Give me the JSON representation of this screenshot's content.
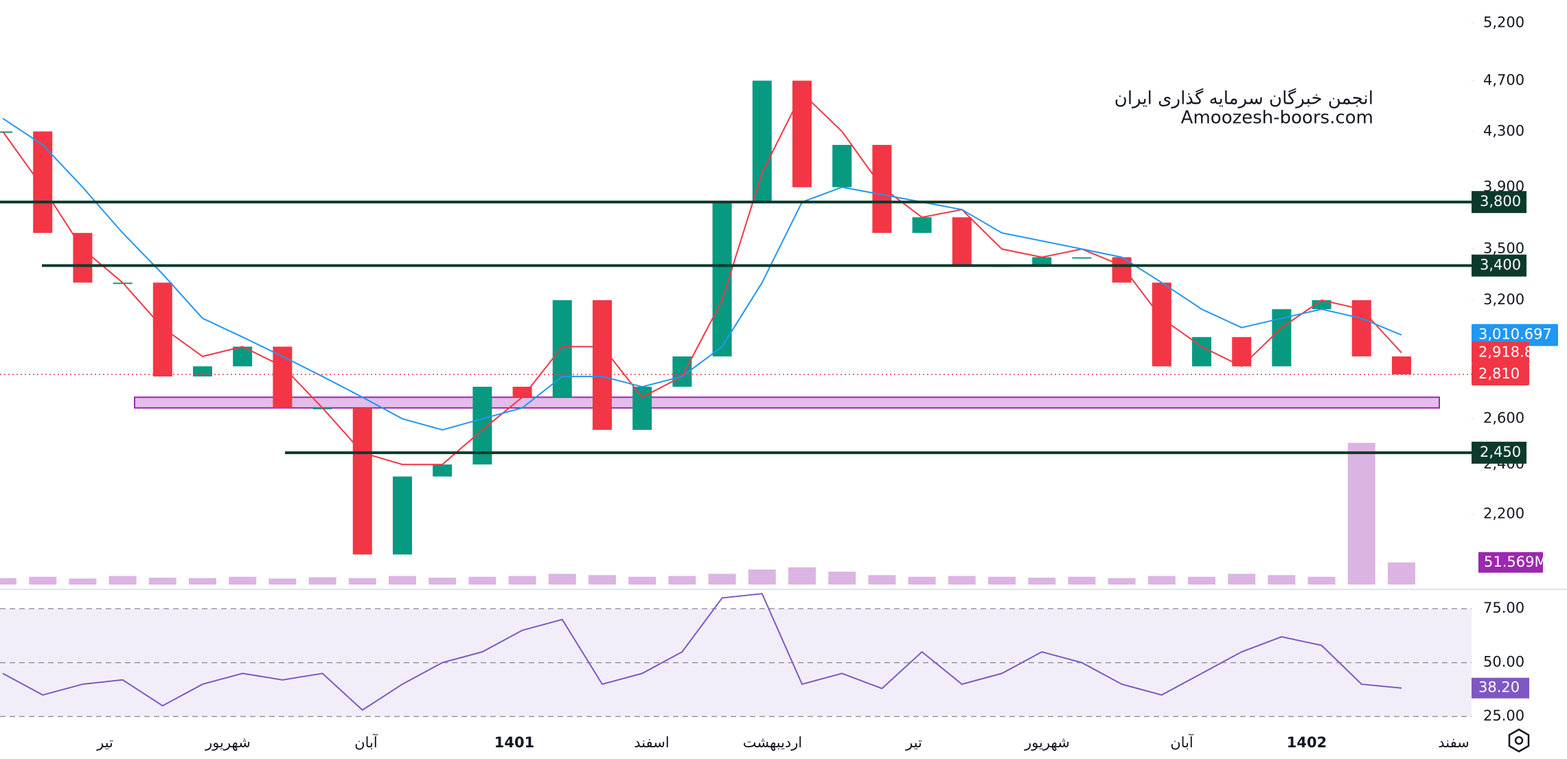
{
  "chart_data": {
    "type": "candlestick",
    "watermark": [
      "انجمن خبرگان سرمایه گذاری ایران",
      "Amoozesh-boors.com"
    ],
    "log_scale": true,
    "ylim": [
      1945,
      5413
    ],
    "yticks": [
      {
        "value": 5200,
        "label": "5,200"
      },
      {
        "value": 4700,
        "label": "4,700"
      },
      {
        "value": 4300,
        "label": "4,300"
      },
      {
        "value": 3900,
        "label": "3,900"
      },
      {
        "value": 3500,
        "label": "3,500"
      },
      {
        "value": 3200,
        "label": "3,200"
      },
      {
        "value": 2600,
        "label": "2,600"
      },
      {
        "value": 2400,
        "label": "2,400"
      },
      {
        "value": 2200,
        "label": "2,200"
      }
    ],
    "up_color": "#089981",
    "down_color": "#f23645",
    "close": [
      4300,
      3600,
      3300,
      3300,
      2800,
      2850,
      2950,
      2650,
      2650,
      2050,
      2350,
      2400,
      2750,
      2700,
      3200,
      2550,
      2750,
      2900,
      3800,
      4700,
      3900,
      4200,
      3600,
      3700,
      3400,
      3400,
      3450,
      3450,
      3300,
      2850,
      3000,
      2850,
      3150,
      3200,
      2900,
      2810
    ],
    "series": [
      {
        "color": "#f23645",
        "values": [
          4300,
          3900,
          3500,
          3300,
          3050,
          2900,
          2950,
          2850,
          2650,
          2450,
          2400,
          2400,
          2550,
          2700,
          2950,
          2950,
          2700,
          2800,
          3200,
          4000,
          4600,
          4300,
          3900,
          3700,
          3750,
          3500,
          3450,
          3500,
          3400,
          3100,
          2950,
          2850,
          3050,
          3200,
          3150,
          2918.8
        ]
      },
      {
        "color": "#2196f3",
        "values": [
          4400,
          4200,
          3900,
          3600,
          3350,
          3100,
          3000,
          2900,
          2800,
          2700,
          2600,
          2550,
          2600,
          2650,
          2800,
          2800,
          2750,
          2800,
          2950,
          3300,
          3800,
          3900,
          3850,
          3800,
          3750,
          3600,
          3550,
          3500,
          3450,
          3300,
          3150,
          3050,
          3100,
          3150,
          3100,
          3010.697
        ]
      }
    ],
    "levels": [
      {
        "value": 3800,
        "label": "3,800"
      },
      {
        "value": 3400,
        "label": "3,400"
      },
      {
        "value": 2450,
        "label": "2,450"
      }
    ],
    "level_color": "#0b3a2c",
    "zone": [
      2650,
      2700
    ],
    "zone_color": "#ce93d8",
    "price_labels": [
      {
        "value": 3010.697,
        "label": "3,010.697",
        "color": "#2196f3"
      },
      {
        "value": 2918.8,
        "label": "2,918.8",
        "color": "#f23645"
      },
      {
        "value": 2810,
        "label": "2,810",
        "color": "#f23645"
      }
    ],
    "volume": {
      "vlim": [
        0,
        400
      ],
      "color": "#9c27b0",
      "values": [
        15,
        18,
        14,
        20,
        16,
        15,
        18,
        14,
        17,
        15,
        20,
        16,
        18,
        20,
        25,
        22,
        18,
        20,
        25,
        35,
        40,
        30,
        22,
        18,
        20,
        18,
        16,
        18,
        15,
        20,
        18,
        25,
        22,
        18,
        330,
        51.569
      ],
      "value_labels": {
        "35": "51.569M"
      }
    },
    "rsi": {
      "ylim": [
        19,
        84
      ],
      "color": "#7e57c2",
      "values": [
        45,
        35,
        40,
        42,
        30,
        40,
        45,
        42,
        45,
        28,
        40,
        50,
        55,
        65,
        70,
        40,
        45,
        55,
        80,
        82,
        40,
        45,
        38,
        55,
        40,
        45,
        55,
        50,
        40,
        35,
        45,
        55,
        62,
        58,
        40,
        38.2
      ],
      "value_labels": {
        "35": "38.20"
      },
      "yticks": [
        {
          "value": 75,
          "label": "75.00"
        },
        {
          "value": 50,
          "label": "50.00"
        },
        {
          "value": 25,
          "label": "25.00"
        }
      ]
    },
    "xlabels": [
      "تیر",
      "شهریور",
      "آبان",
      "1401",
      "اسفند",
      "اردیبهشت",
      "تیر",
      "شهریور",
      "آبان",
      "1402",
      "سفند"
    ]
  }
}
